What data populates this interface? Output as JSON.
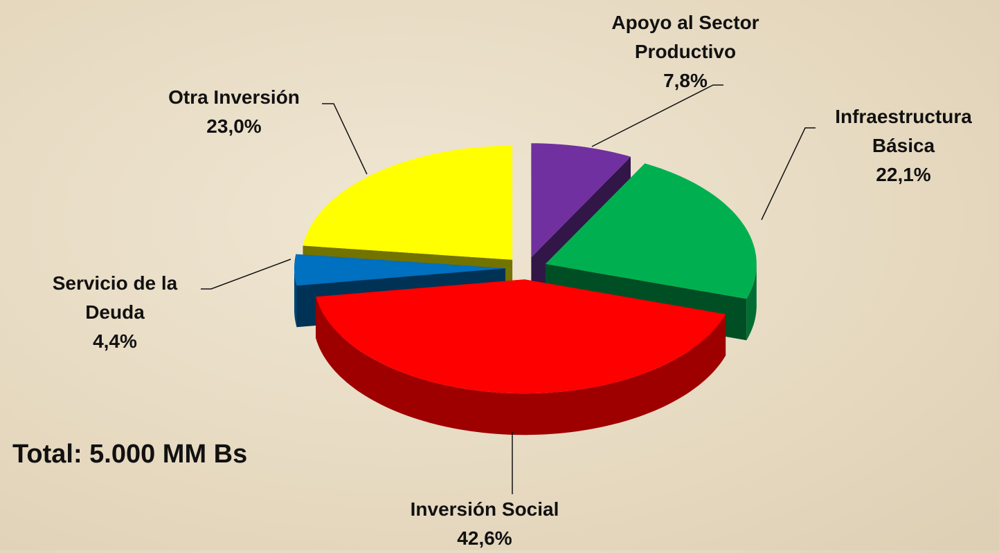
{
  "chart_data": {
    "type": "pie",
    "categories": [
      "Apoyo al Sector Productivo",
      "Infraestructura Básica",
      "Inversión Social",
      "Servicio de la Deuda",
      "Otra Inversión"
    ],
    "values": [
      7.8,
      22.1,
      42.6,
      4.4,
      23.0
    ],
    "value_labels": [
      "7,8%",
      "22,1%",
      "42,6%",
      "4,4%",
      "23,0%"
    ],
    "colors": [
      "#7030a0",
      "#00b050",
      "#ff0000",
      "#0070c0",
      "#ffff00"
    ],
    "annotations": [
      "Total: 5.000 MM Bs"
    ]
  }
}
